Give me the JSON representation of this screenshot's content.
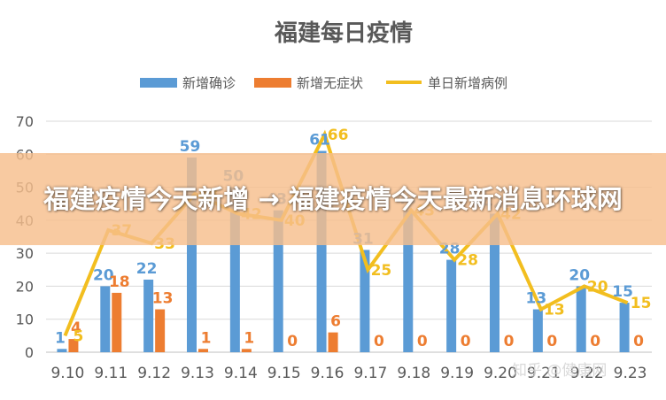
{
  "chart_data": {
    "type": "bar",
    "title": "福建每日疫情",
    "categories": [
      "9.10",
      "9.11",
      "9.12",
      "9.13",
      "9.14",
      "9.15",
      "9.16",
      "9.17",
      "9.18",
      "9.19",
      "9.20",
      "9.21",
      "9.22",
      "9.23"
    ],
    "ylim": [
      0,
      70
    ],
    "yticks": [
      0,
      10,
      20,
      30,
      40,
      50,
      60,
      70
    ],
    "grid": true,
    "legend": "top-center",
    "series": [
      {
        "name": "新增确诊",
        "type": "bar",
        "color": "#5B9BD5",
        "values": [
          1,
          20,
          22,
          59,
          50,
          43,
          61,
          31,
          43,
          28,
          42,
          13,
          20,
          15
        ]
      },
      {
        "name": "新增无症状",
        "type": "bar",
        "color": "#ED7D31",
        "values": [
          4,
          18,
          13,
          1,
          1,
          0,
          6,
          0,
          0,
          0,
          0,
          0,
          0,
          0
        ]
      },
      {
        "name": "单日新增病例",
        "type": "line",
        "color": "#F2BE1F",
        "values": [
          5,
          37,
          33,
          48,
          42,
          40,
          66,
          25,
          43,
          28,
          42,
          13,
          20,
          15
        ]
      }
    ]
  },
  "overlay": {
    "headline": "福建疫情今天新增 → 福建疫情今天最新消息环球网",
    "watermark": "知乎 @健康网"
  }
}
